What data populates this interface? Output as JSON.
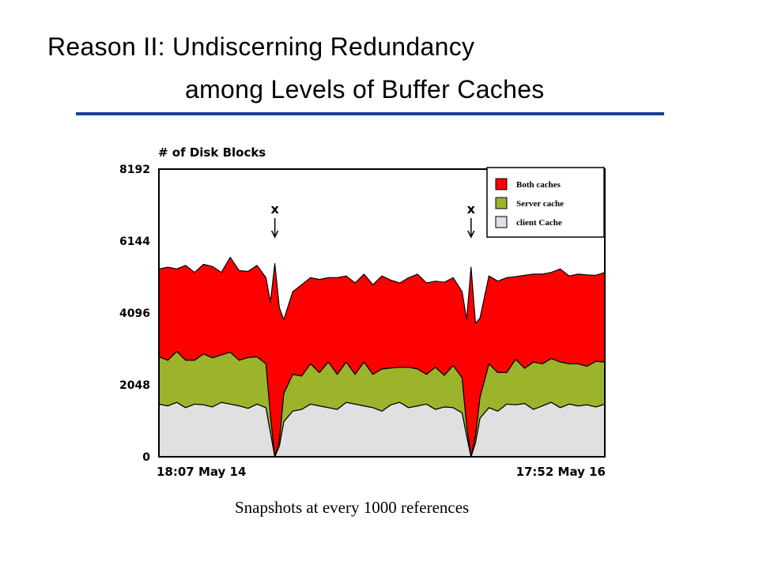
{
  "slide": {
    "title_line_1": "Reason II: Undiscerning Redundancy",
    "title_line_2": "among Levels of Buffer Caches",
    "caption": "Snapshots at every 1000 references",
    "accent_color": "#1a3f9a"
  },
  "chart_data": {
    "type": "area",
    "stacked": true,
    "ylabel": "# of Disk Blocks",
    "yticks": [
      "8192",
      "6144",
      "4096",
      "2048",
      "0"
    ],
    "ylim": [
      0,
      8192
    ],
    "x_start_label": "18:07 May 14",
    "x_end_label": "17:52 May 16",
    "x_range": [
      0,
      100
    ],
    "legend_position": "top-right",
    "annotations": [
      {
        "text": "x",
        "x": 26
      },
      {
        "text": "x",
        "x": 70
      }
    ],
    "x": [
      0,
      2,
      4,
      6,
      8,
      10,
      12,
      14,
      16,
      18,
      20,
      22,
      24,
      25,
      26,
      27,
      28,
      30,
      32,
      34,
      36,
      38,
      40,
      42,
      44,
      46,
      48,
      50,
      52,
      54,
      56,
      58,
      60,
      62,
      64,
      66,
      68,
      69,
      70,
      71,
      72,
      74,
      76,
      78,
      80,
      82,
      84,
      86,
      88,
      90,
      92,
      94,
      96,
      98,
      100
    ],
    "series": [
      {
        "name": "client Cache",
        "color": "#e0e0e0",
        "values": [
          1500,
          1450,
          1550,
          1400,
          1500,
          1480,
          1420,
          1550,
          1500,
          1450,
          1380,
          1500,
          1400,
          700,
          0,
          300,
          1000,
          1300,
          1350,
          1500,
          1450,
          1400,
          1350,
          1550,
          1500,
          1450,
          1400,
          1300,
          1480,
          1550,
          1400,
          1450,
          1500,
          1350,
          1420,
          1400,
          1250,
          600,
          0,
          400,
          1100,
          1400,
          1300,
          1500,
          1480,
          1520,
          1350,
          1450,
          1550,
          1400,
          1500,
          1450,
          1480,
          1420,
          1500
        ]
      },
      {
        "name": "Server cache",
        "color": "#9cb42c",
        "values": [
          1350,
          1300,
          1450,
          1350,
          1250,
          1450,
          1400,
          1350,
          1480,
          1300,
          1450,
          1350,
          1250,
          500,
          0,
          150,
          800,
          1050,
          950,
          1150,
          950,
          1300,
          1000,
          1150,
          850,
          1250,
          950,
          1200,
          1050,
          1000,
          1150,
          1050,
          850,
          1200,
          900,
          1200,
          1000,
          300,
          0,
          200,
          600,
          1250,
          1100,
          900,
          1300,
          1000,
          1350,
          1200,
          1250,
          1300,
          1150,
          1200,
          1100,
          1300,
          1200
        ]
      },
      {
        "name": "Both caches",
        "color": "#ff0000",
        "values": [
          2500,
          2650,
          2350,
          2700,
          2500,
          2550,
          2600,
          2350,
          2700,
          2550,
          2450,
          2600,
          2450,
          3200,
          5500,
          3800,
          2100,
          2350,
          2600,
          2450,
          2650,
          2400,
          2750,
          2450,
          2600,
          2500,
          2550,
          2650,
          2500,
          2400,
          2550,
          2700,
          2600,
          2450,
          2650,
          2500,
          2450,
          3000,
          5400,
          3200,
          2250,
          2500,
          2600,
          2700,
          2350,
          2650,
          2500,
          2550,
          2450,
          2650,
          2500,
          2550,
          2600,
          2450,
          2550
        ]
      }
    ]
  }
}
